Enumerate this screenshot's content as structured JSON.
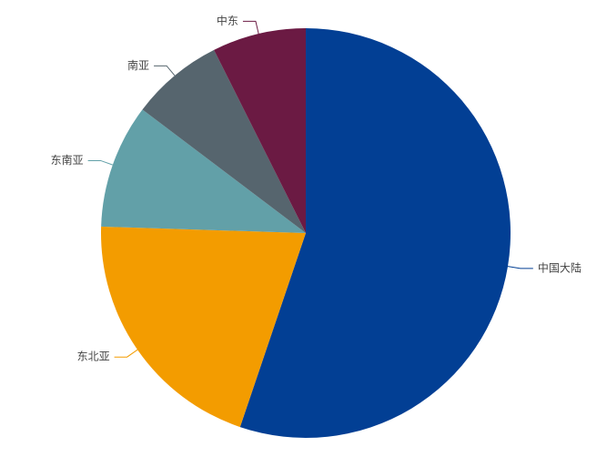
{
  "chart_data": {
    "type": "pie",
    "categories": [
      "中国大陆",
      "东北亚",
      "东南亚",
      "南亚",
      "中东"
    ],
    "values": [
      55.2,
      20.3,
      9.8,
      7.3,
      7.4
    ],
    "colors": [
      "#023f94",
      "#f39c00",
      "#62a0a8",
      "#56656e",
      "#6b1a43"
    ]
  }
}
